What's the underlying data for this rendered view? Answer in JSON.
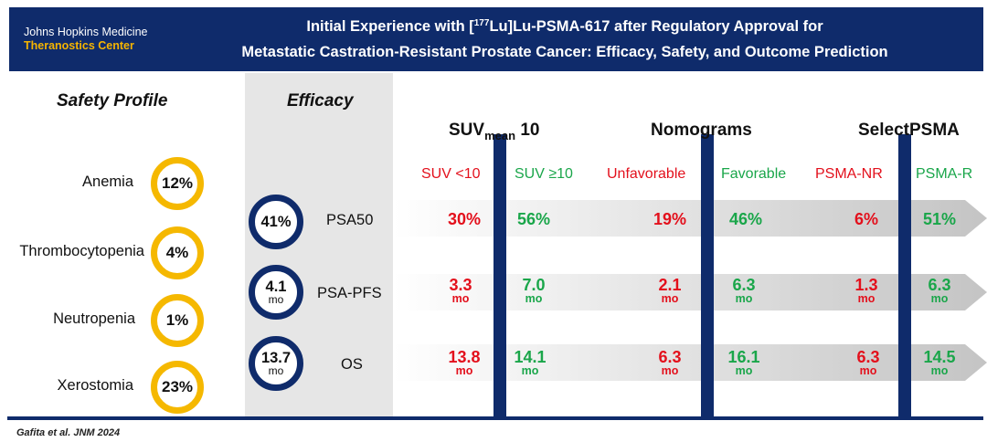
{
  "header": {
    "logo_line1": "Johns Hopkins Medicine",
    "logo_line2": "Theranostics Center",
    "title_pre": "Initial Experience with [",
    "title_post": "Lu]Lu-PSMA-617 after Regulatory Approval for",
    "title_line2": "Metastatic Castration-Resistant Prostate Cancer: Efficacy, Safety, and Outcome Prediction"
  },
  "safety": {
    "heading": "Safety Profile",
    "items": [
      {
        "label": "Anemia",
        "value": "12%"
      },
      {
        "label": "Thrombocytopenia",
        "value": "4%"
      },
      {
        "label": "Neutropenia",
        "value": "1%"
      },
      {
        "label": "Xerostomia",
        "value": "23%"
      }
    ]
  },
  "efficacy": {
    "heading": "Efficacy",
    "metrics": [
      {
        "label": "PSA50",
        "value": "41%",
        "unit": ""
      },
      {
        "label": "PSA-PFS",
        "value": "4.1",
        "unit": "mo"
      },
      {
        "label": "OS",
        "value": "13.7",
        "unit": "mo"
      }
    ]
  },
  "groups": {
    "suv": {
      "title": "SUV",
      "title_end": "10",
      "low": "SUV <10",
      "high": "SUV ≥10"
    },
    "nomo": {
      "title": "Nomograms",
      "low": "Unfavorable",
      "high": "Favorable"
    },
    "sel": {
      "title": "SelectPSMA",
      "low": "PSMA-NR",
      "high": "PSMA-R"
    }
  },
  "rows": [
    {
      "suv_low": "30%",
      "suv_high": "56%",
      "nomo_low": "19%",
      "nomo_high": "46%",
      "sel_low": "6%",
      "sel_high": "51%",
      "unit": ""
    },
    {
      "suv_low": "3.3",
      "suv_high": "7.0",
      "nomo_low": "2.1",
      "nomo_high": "6.3",
      "sel_low": "1.3",
      "sel_high": "6.3",
      "unit": "mo"
    },
    {
      "suv_low": "13.8",
      "suv_high": "14.1",
      "nomo_low": "6.3",
      "nomo_high": "16.1",
      "sel_low": "6.3",
      "sel_high": "14.5",
      "unit": "mo"
    }
  ],
  "citation": "Gafita et al. JNM 2024",
  "colors": {
    "navy": "#0f2b6b",
    "gold": "#f5b800",
    "red": "#e3101c",
    "green": "#1aa64a"
  }
}
